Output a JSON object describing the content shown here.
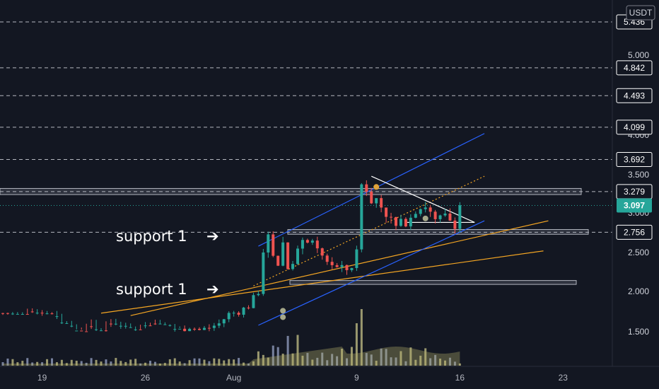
{
  "currency": "USDT",
  "price_axis": {
    "ticks": [
      1.5,
      2.0,
      2.5,
      3.0,
      3.5,
      4.0,
      5.0
    ],
    "tick_labels": [
      "1.500",
      "2.000",
      "2.500",
      "3.000",
      "3.500",
      "4.000",
      "5.000"
    ]
  },
  "time_axis": {
    "labels": [
      "19",
      "26",
      "Aug",
      "9",
      "16",
      "23"
    ]
  },
  "current_price": {
    "label": "3.097",
    "value": 3.097,
    "color": "#26a69a"
  },
  "level_tags": [
    {
      "label": "5.436",
      "value": 5.436
    },
    {
      "label": "4.842",
      "value": 4.842
    },
    {
      "label": "4.493",
      "value": 4.493
    },
    {
      "label": "4.099",
      "value": 4.099
    },
    {
      "label": "3.692",
      "value": 3.692
    },
    {
      "label": "3.279",
      "value": 3.279
    },
    {
      "label": "2.756",
      "value": 2.756
    }
  ],
  "annotations": [
    {
      "text": "support 1",
      "arrow": "➔"
    },
    {
      "text": "support 1",
      "arrow": "➔"
    }
  ],
  "colors": {
    "background": "#131722",
    "up": "#26a69a",
    "down": "#ef5350",
    "trend_orange": "#f5a623",
    "channel_blue": "#2962ff",
    "triangle": "#ffffff",
    "volume": "#b5b06a",
    "grid_dashed": "#d1d4dc"
  },
  "chart_data": {
    "type": "candlestick",
    "title": "",
    "ylim": [
      1.25,
      5.5
    ],
    "series": [
      {
        "name": "",
        "close_path": [
          [
            0,
            1.27
          ],
          [
            10,
            1.27
          ],
          [
            12,
            1.38
          ],
          [
            14,
            1.46
          ],
          [
            16,
            1.5
          ],
          [
            18,
            1.4
          ],
          [
            20,
            1.48
          ],
          [
            22,
            1.36
          ],
          [
            24,
            1.43
          ],
          [
            26,
            1.48
          ],
          [
            28,
            1.44
          ],
          [
            30,
            1.4
          ],
          [
            32,
            1.38
          ],
          [
            34,
            1.42
          ],
          [
            36,
            1.52
          ],
          [
            38,
            1.56
          ],
          [
            40,
            1.52
          ],
          [
            42,
            1.55
          ],
          [
            44,
            1.6
          ],
          [
            46,
            1.72
          ],
          [
            48,
            1.75
          ],
          [
            50,
            1.82
          ],
          [
            52,
            2.0
          ],
          [
            53,
            2.45
          ],
          [
            54,
            2.75
          ],
          [
            55,
            2.5
          ],
          [
            56,
            2.35
          ],
          [
            57,
            2.62
          ],
          [
            58,
            2.3
          ],
          [
            60,
            2.52
          ],
          [
            62,
            2.68
          ],
          [
            64,
            2.5
          ],
          [
            66,
            2.4
          ],
          [
            68,
            2.3
          ],
          [
            70,
            2.28
          ],
          [
            71,
            2.33
          ],
          [
            72,
            2.5
          ],
          [
            73,
            3.38
          ],
          [
            74,
            3.32
          ],
          [
            75,
            3.1
          ],
          [
            76,
            3.2
          ],
          [
            78,
            3.0
          ],
          [
            80,
            2.82
          ],
          [
            82,
            2.9
          ],
          [
            84,
            3.05
          ],
          [
            86,
            3.1
          ],
          [
            88,
            2.88
          ],
          [
            90,
            2.95
          ],
          [
            92,
            2.87
          ],
          [
            93,
            3.1
          ]
        ]
      }
    ],
    "horizontal_levels": [
      5.436,
      4.842,
      4.493,
      4.099,
      3.692,
      3.279,
      2.756
    ],
    "zones": [
      [
        3.24,
        3.32
      ],
      [
        2.73,
        2.79
      ],
      [
        2.09,
        2.14
      ]
    ],
    "grid": false,
    "legend": "none"
  }
}
